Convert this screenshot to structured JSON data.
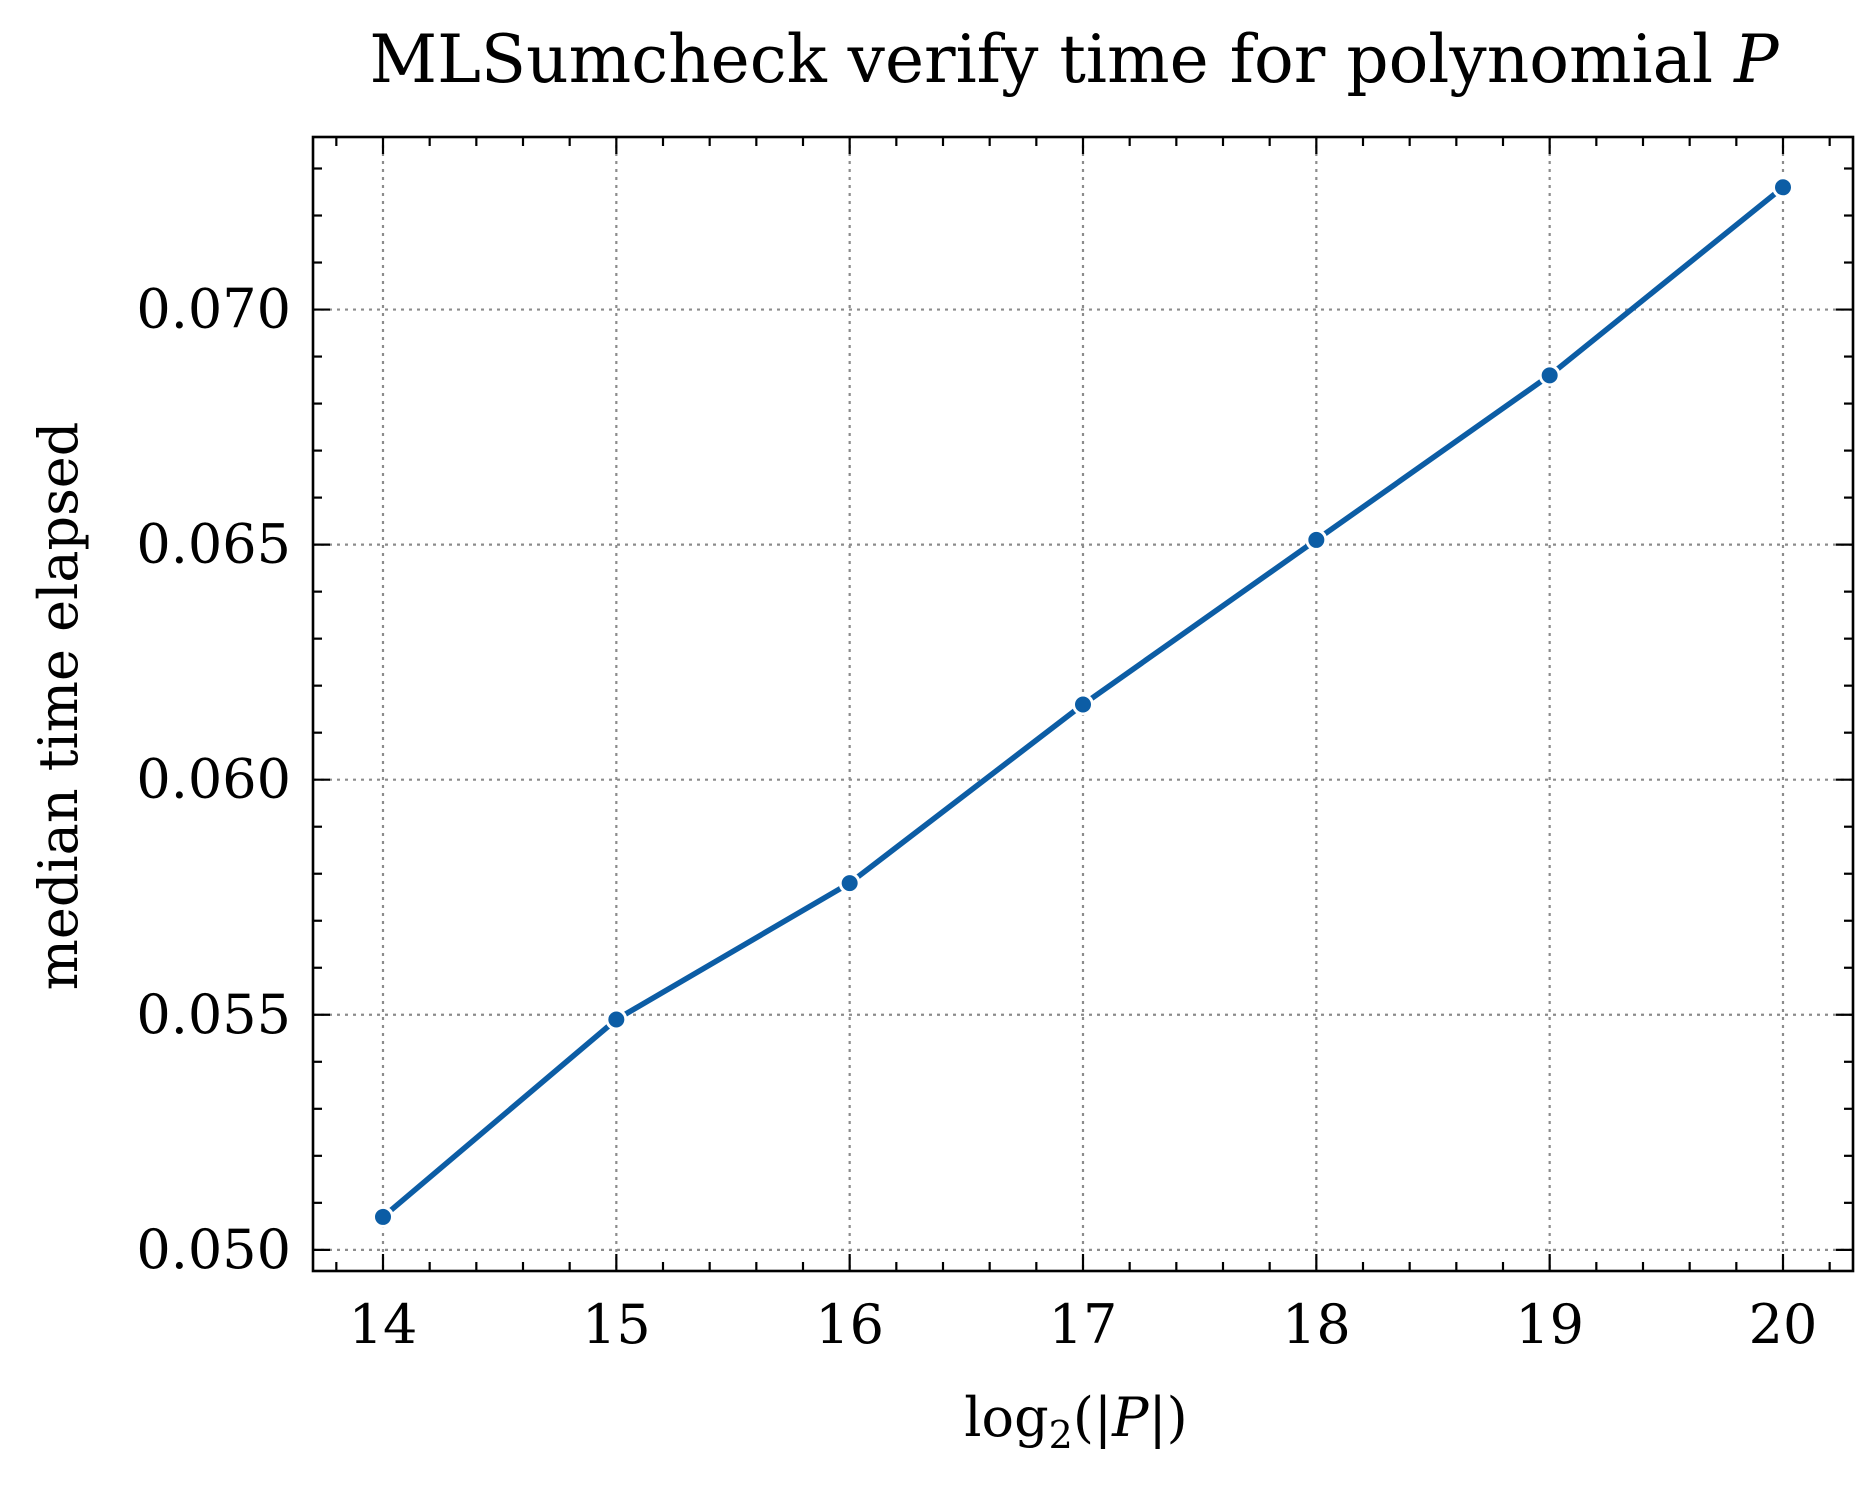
{
  "chart_data": {
    "type": "line",
    "title": "MLSumcheck verify time for polynomial",
    "title_var": "P",
    "xlabel": {
      "fn": "log",
      "sub": "2",
      "open": "(|",
      "var": "P",
      "close": "|)"
    },
    "ylabel": "median time elapsed",
    "x": [
      14,
      15,
      16,
      17,
      18,
      19,
      20
    ],
    "series": [
      {
        "values": [
          0.0507,
          0.0549,
          0.0578,
          0.0616,
          0.0651,
          0.0686,
          0.0726
        ],
        "color": "#0C5DA5",
        "marker": "circle"
      }
    ],
    "xlim": [
      13.7,
      20.3
    ],
    "ylim": [
      0.04955,
      0.07367
    ],
    "xticks": [
      14,
      15,
      16,
      17,
      18,
      19,
      20
    ],
    "xtick_labels": [
      "14",
      "15",
      "16",
      "17",
      "18",
      "19",
      "20"
    ],
    "yticks": [
      0.05,
      0.055,
      0.06,
      0.065,
      0.07
    ],
    "ytick_labels": [
      "0.050",
      "0.055",
      "0.060",
      "0.065",
      "0.070"
    ],
    "grid": true,
    "grid_style": "dotted",
    "grid_color": "#8c8c8c"
  }
}
